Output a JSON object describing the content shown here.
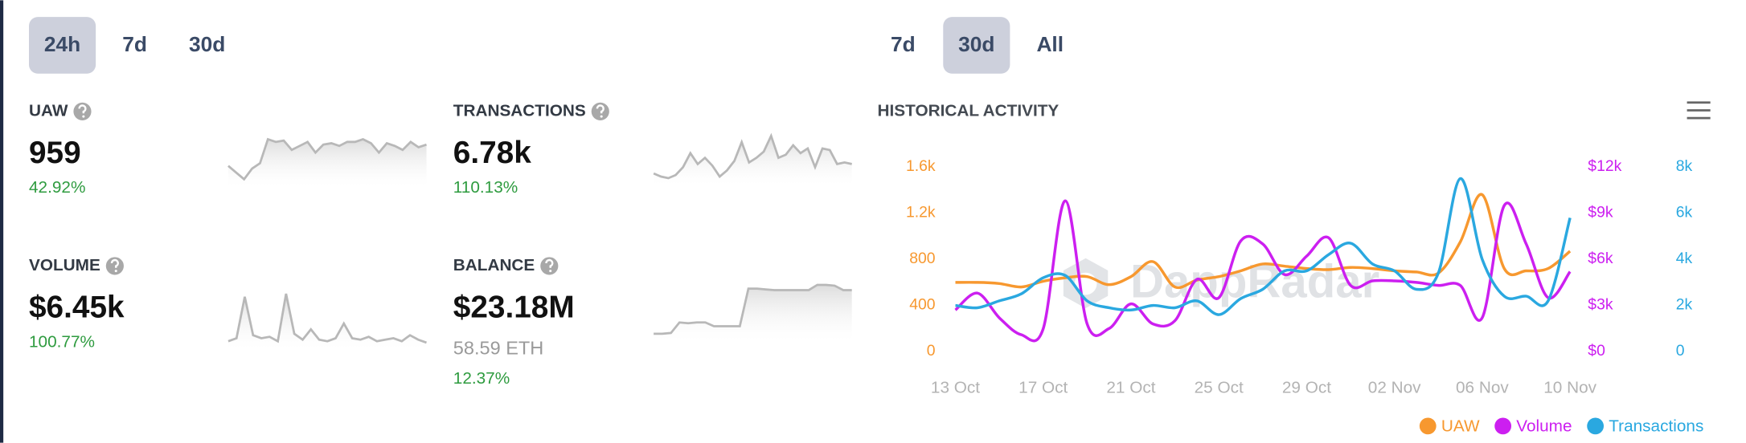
{
  "left_tabs": {
    "options": [
      "24h",
      "7d",
      "30d"
    ],
    "active": 0
  },
  "stats": [
    {
      "label": "UAW",
      "value": "959",
      "change": "42.92%",
      "sparkline": [
        40,
        35,
        30,
        38,
        42,
        60,
        58,
        59,
        52,
        55,
        58,
        50,
        56,
        57,
        55,
        58,
        58,
        60,
        57,
        50,
        57,
        55,
        52,
        58,
        54,
        56
      ]
    },
    {
      "label": "TRANSACTIONS",
      "value": "6.78k",
      "change": "110.13%",
      "sparkline": [
        20,
        18,
        17,
        19,
        24,
        33,
        26,
        30,
        25,
        18,
        22,
        28,
        40,
        27,
        30,
        34,
        44,
        30,
        32,
        38,
        33,
        36,
        24,
        36,
        35,
        26,
        27,
        26
      ]
    },
    {
      "label": "VOLUME",
      "value": "$6.45k",
      "change": "100.77%",
      "sparkline": [
        10,
        12,
        40,
        14,
        12,
        13,
        10,
        42,
        15,
        11,
        18,
        11,
        10,
        12,
        22,
        12,
        11,
        13,
        10,
        11,
        12,
        10,
        14,
        11,
        9
      ]
    },
    {
      "label": "BALANCE",
      "value": "$23.18M",
      "secondary": "58.59 ETH",
      "change": "12.37%",
      "sparkline": [
        20,
        20,
        21,
        35,
        34,
        35,
        35,
        30,
        30,
        30,
        30,
        80,
        80,
        79,
        78,
        78,
        78,
        78,
        78,
        85,
        85,
        84,
        78,
        78
      ]
    }
  ],
  "right_tabs": {
    "options": [
      "7d",
      "30d",
      "All"
    ],
    "active": 1
  },
  "chart_data": {
    "type": "line",
    "title": "HISTORICAL ACTIVITY",
    "watermark": "DappRadar",
    "categories": [
      "13 Oct",
      null,
      null,
      null,
      "17 Oct",
      null,
      null,
      null,
      "21 Oct",
      null,
      null,
      null,
      "25 Oct",
      null,
      null,
      null,
      "29 Oct",
      null,
      null,
      null,
      "02 Nov",
      null,
      null,
      null,
      "06 Nov",
      null,
      null,
      null,
      "10 Nov"
    ],
    "series": [
      {
        "name": "UAW",
        "color": "#f7982f",
        "axis": "y",
        "values": [
          600,
          600,
          590,
          560,
          610,
          640,
          650,
          580,
          650,
          780,
          560,
          620,
          650,
          700,
          760,
          740,
          720,
          710,
          730,
          720,
          700,
          690,
          680,
          950,
          1360,
          720,
          700,
          720,
          870
        ]
      },
      {
        "name": "Volume",
        "color": "#cc1ff0",
        "axis": "y2",
        "values": [
          2700,
          3800,
          2200,
          1100,
          1500,
          9800,
          1800,
          1500,
          3100,
          1800,
          2000,
          4700,
          3500,
          7200,
          7000,
          5000,
          6200,
          7400,
          4300,
          4600,
          4600,
          4500,
          4300,
          4300,
          2200,
          9500,
          7000,
          3500,
          5200
        ]
      },
      {
        "name": "Transactions",
        "color": "#2aa8e0",
        "axis": "y3",
        "values": [
          2000,
          1900,
          2200,
          2500,
          3200,
          3300,
          2200,
          1900,
          1800,
          2000,
          1900,
          2200,
          1600,
          2300,
          2700,
          3500,
          3500,
          4200,
          4700,
          3800,
          3500,
          2700,
          3400,
          7500,
          4000,
          2400,
          2400,
          2200,
          5800
        ]
      }
    ],
    "ylim": [
      0,
      1600
    ],
    "yticks": [
      0,
      400,
      800,
      {
        "value": 1200,
        "label": "1.2k"
      },
      {
        "value": 1600,
        "label": "1.6k"
      }
    ],
    "y2lim": [
      0,
      12000
    ],
    "y2ticks": [
      {
        "value": 0,
        "label": "$0"
      },
      {
        "value": 3000,
        "label": "$3k"
      },
      {
        "value": 6000,
        "label": "$6k"
      },
      {
        "value": 9000,
        "label": "$9k"
      },
      {
        "value": 12000,
        "label": "$12k"
      }
    ],
    "y3lim": [
      0,
      8000
    ],
    "y3ticks": [
      0,
      {
        "value": 2000,
        "label": "2k"
      },
      {
        "value": 4000,
        "label": "4k"
      },
      {
        "value": 6000,
        "label": "6k"
      },
      {
        "value": 8000,
        "label": "8k"
      }
    ],
    "grid": false,
    "legend": "bottom-right"
  }
}
